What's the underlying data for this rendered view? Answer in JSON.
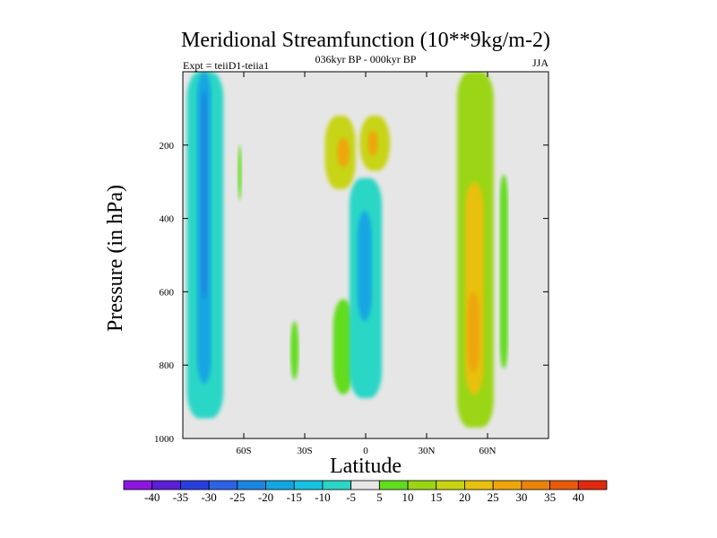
{
  "chart_data": {
    "type": "filled-contour",
    "title": "Meridional Streamfunction (10**9kg/m-2)",
    "left_string": "Expt = teiiD1-teiia1",
    "center_string": "036kyr BP - 000kyr BP",
    "right_string": "JJA",
    "xlabel": "Latitude",
    "ylabel": "Pressure (in hPa)",
    "xlim": [
      -90,
      90
    ],
    "ylim": [
      1000,
      0
    ],
    "x_ticks": [
      {
        "value": -60,
        "label": "60S"
      },
      {
        "value": -30,
        "label": "30S"
      },
      {
        "value": 0,
        "label": "0"
      },
      {
        "value": 30,
        "label": "30N"
      },
      {
        "value": 60,
        "label": "60N"
      }
    ],
    "y_ticks": [
      {
        "value": 200,
        "label": "200"
      },
      {
        "value": 400,
        "label": "400"
      },
      {
        "value": 600,
        "label": "600"
      },
      {
        "value": 800,
        "label": "800"
      },
      {
        "value": 1000,
        "label": "1000"
      }
    ],
    "background_color": "#e6e6e6",
    "colorbar": {
      "labels": [
        "-40",
        "-35",
        "-30",
        "-25",
        "-20",
        "-15",
        "-10",
        "-5",
        "5",
        "10",
        "15",
        "20",
        "25",
        "30",
        "35",
        "40"
      ],
      "colors": [
        "#8a16e0",
        "#5c1ed6",
        "#2a3ee0",
        "#2e62e6",
        "#1a86e0",
        "#12a6e2",
        "#16c2e2",
        "#2ad6c6",
        "#e6e6e6",
        "#62dc1e",
        "#9ad612",
        "#c8d412",
        "#e8c00e",
        "#eea60a",
        "#ea8408",
        "#e85a0a",
        "#e02a0e"
      ]
    },
    "regions": [
      {
        "name": "sh-tropics-negative-cell",
        "level": -10,
        "lat": [
          -88,
          -70
        ],
        "p": [
          0,
          945
        ]
      },
      {
        "name": "sh-tropics-core",
        "level": -20,
        "lat": [
          -83,
          -76
        ],
        "p": [
          0,
          850
        ]
      },
      {
        "name": "sh-tropics-inner-core",
        "level": -25,
        "lat": [
          -81,
          -78
        ],
        "p": [
          50,
          620
        ]
      },
      {
        "name": "upper-positive-lobe-west",
        "level": 15,
        "lat": [
          -20,
          -5
        ],
        "p": [
          120,
          320
        ]
      },
      {
        "name": "upper-positive-peak-west",
        "level": 25,
        "lat": [
          -14,
          -8
        ],
        "p": [
          180,
          260
        ]
      },
      {
        "name": "upper-positive-lobe-east",
        "level": 15,
        "lat": [
          -3,
          12
        ],
        "p": [
          120,
          270
        ]
      },
      {
        "name": "upper-positive-peak-east",
        "level": 25,
        "lat": [
          1,
          6
        ],
        "p": [
          160,
          230
        ]
      },
      {
        "name": "equatorial-negative-cell",
        "level": -10,
        "lat": [
          -8,
          8
        ],
        "p": [
          290,
          890
        ]
      },
      {
        "name": "equatorial-negative-core",
        "level": -20,
        "lat": [
          -4,
          3
        ],
        "p": [
          380,
          680
        ]
      },
      {
        "name": "nh-subtropics-positive-band",
        "level": 10,
        "lat": [
          45,
          63
        ],
        "p": [
          0,
          970
        ]
      },
      {
        "name": "nh-subtropics-core",
        "level": 20,
        "lat": [
          49,
          58
        ],
        "p": [
          300,
          880
        ]
      },
      {
        "name": "nh-subtropics-peak",
        "level": 25,
        "lat": [
          50,
          56
        ],
        "p": [
          600,
          820
        ]
      },
      {
        "name": "small-positive-patch-1",
        "level": 5,
        "lat": [
          -63,
          -61
        ],
        "p": [
          200,
          350
        ]
      },
      {
        "name": "small-positive-patch-2",
        "level": 5,
        "lat": [
          -37,
          -33
        ],
        "p": [
          680,
          840
        ]
      },
      {
        "name": "small-positive-patch-3",
        "level": 5,
        "lat": [
          -16,
          -6
        ],
        "p": [
          620,
          880
        ]
      },
      {
        "name": "small-positive-patch-4",
        "level": 5,
        "lat": [
          66,
          70
        ],
        "p": [
          280,
          810
        ]
      }
    ]
  }
}
